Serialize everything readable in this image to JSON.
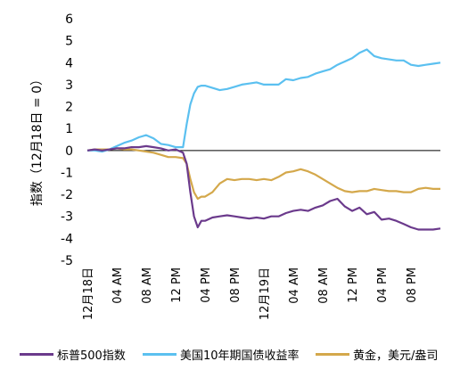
{
  "chart_data": {
    "type": "line",
    "title": "",
    "ylabel": "指数（12月18日 = 0）",
    "xlabel": "",
    "ylim": [
      -5,
      6
    ],
    "yticks": [
      -5,
      -4,
      -3,
      -2,
      -1,
      0,
      1,
      2,
      3,
      4,
      5,
      6
    ],
    "x_tick_labels": [
      "12月18日",
      "04 AM",
      "08 AM",
      "12 PM",
      "04 PM",
      "08 PM",
      "12月19日",
      "04 AM",
      "08 AM",
      "12 PM",
      "04 PM",
      "08 PM"
    ],
    "x_hours": [
      0,
      4,
      8,
      12,
      16,
      20,
      24,
      28,
      32,
      36,
      40,
      44
    ],
    "xlim_hours": [
      0,
      48
    ],
    "legend_position": "bottom",
    "series": [
      {
        "name": "标普500指数",
        "color": "#6b3a8c",
        "x": [
          0,
          1,
          2,
          3,
          4,
          5,
          6,
          7,
          8,
          9,
          10,
          11,
          12,
          13,
          13.5,
          14,
          14.5,
          15,
          15.5,
          16,
          17,
          18,
          19,
          20,
          21,
          22,
          23,
          24,
          25,
          26,
          27,
          28,
          29,
          30,
          31,
          32,
          33,
          34,
          35,
          36,
          37,
          38,
          39,
          40,
          41,
          42,
          43,
          44,
          45,
          46,
          47,
          48
        ],
        "y": [
          0,
          0.05,
          0,
          0.05,
          0.1,
          0.1,
          0.15,
          0.15,
          0.2,
          0.15,
          0.1,
          0,
          0.05,
          -0.1,
          -0.6,
          -1.9,
          -3.0,
          -3.5,
          -3.2,
          -3.2,
          -3.05,
          -3.0,
          -2.95,
          -3.0,
          -3.05,
          -3.1,
          -3.05,
          -3.1,
          -3.0,
          -3.0,
          -2.85,
          -2.75,
          -2.7,
          -2.75,
          -2.6,
          -2.5,
          -2.3,
          -2.2,
          -2.55,
          -2.75,
          -2.6,
          -2.9,
          -2.8,
          -3.15,
          -3.1,
          -3.2,
          -3.35,
          -3.5,
          -3.6,
          -3.6,
          -3.6,
          -3.55
        ]
      },
      {
        "name": "美国10年期国债收益率",
        "color": "#5bc0f0",
        "x": [
          0,
          1,
          2,
          3,
          4,
          5,
          6,
          7,
          8,
          9,
          10,
          11,
          12,
          13,
          13.5,
          14,
          14.5,
          15,
          15.5,
          16,
          17,
          18,
          19,
          20,
          21,
          22,
          23,
          24,
          25,
          26,
          27,
          28,
          29,
          30,
          31,
          32,
          33,
          34,
          35,
          36,
          37,
          38,
          39,
          40,
          41,
          42,
          43,
          44,
          45,
          46,
          47,
          48
        ],
        "y": [
          0,
          0,
          -0.05,
          0.05,
          0.2,
          0.35,
          0.45,
          0.6,
          0.7,
          0.55,
          0.3,
          0.25,
          0.15,
          0.15,
          1.2,
          2.1,
          2.6,
          2.9,
          2.95,
          2.95,
          2.85,
          2.75,
          2.8,
          2.9,
          3.0,
          3.05,
          3.1,
          3.0,
          3.0,
          3.0,
          3.25,
          3.2,
          3.3,
          3.35,
          3.5,
          3.6,
          3.7,
          3.9,
          4.05,
          4.2,
          4.45,
          4.6,
          4.3,
          4.2,
          4.15,
          4.1,
          4.1,
          3.9,
          3.85,
          3.9,
          3.95,
          4.0
        ]
      },
      {
        "name": "黄金，美元/盎司",
        "color": "#d4a84b",
        "x": [
          0,
          1,
          2,
          3,
          4,
          5,
          6,
          7,
          8,
          9,
          10,
          11,
          12,
          13,
          13.5,
          14,
          14.5,
          15,
          15.5,
          16,
          17,
          18,
          19,
          20,
          21,
          22,
          23,
          24,
          25,
          26,
          27,
          28,
          29,
          30,
          31,
          32,
          33,
          34,
          35,
          36,
          37,
          38,
          39,
          40,
          41,
          42,
          43,
          44,
          45,
          46,
          47,
          48
        ],
        "y": [
          0,
          0.05,
          0.05,
          0.05,
          0.1,
          0.05,
          0.05,
          0,
          -0.05,
          -0.1,
          -0.2,
          -0.3,
          -0.3,
          -0.35,
          -0.6,
          -1.3,
          -1.9,
          -2.2,
          -2.1,
          -2.1,
          -1.9,
          -1.5,
          -1.3,
          -1.35,
          -1.3,
          -1.3,
          -1.35,
          -1.3,
          -1.35,
          -1.2,
          -1.0,
          -0.95,
          -0.85,
          -0.95,
          -1.1,
          -1.3,
          -1.5,
          -1.7,
          -1.85,
          -1.9,
          -1.85,
          -1.85,
          -1.75,
          -1.8,
          -1.85,
          -1.85,
          -1.9,
          -1.9,
          -1.75,
          -1.7,
          -1.75,
          -1.75
        ]
      }
    ]
  }
}
